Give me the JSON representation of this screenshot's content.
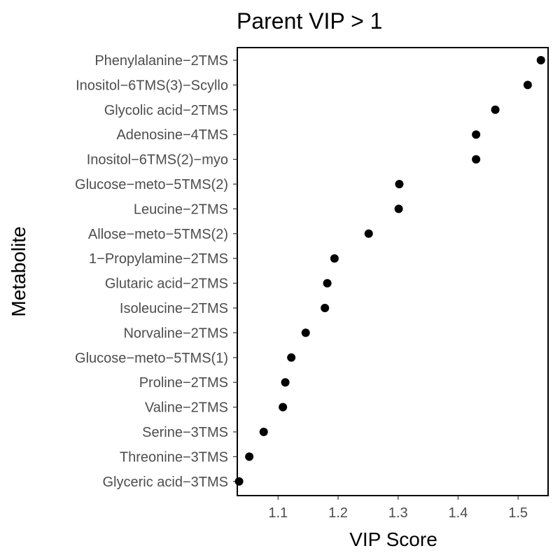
{
  "chart_data": {
    "type": "scatter",
    "title": "Parent VIP > 1",
    "xlabel": "VIP Score",
    "ylabel": "Metabolite",
    "xlim": [
      1.032,
      1.55
    ],
    "xticks": [
      1.1,
      1.2,
      1.3,
      1.4,
      1.5
    ],
    "xtick_labels": [
      "1.1",
      "1.2",
      "1.3",
      "1.4",
      "1.5"
    ],
    "grid": false,
    "legend": "none",
    "point_color": "#000000",
    "points": [
      {
        "label": "Phenylalanine−2TMS",
        "x": 1.538
      },
      {
        "label": "Inositol−6TMS(3)−Scyllo",
        "x": 1.516
      },
      {
        "label": "Glycolic acid−2TMS",
        "x": 1.462
      },
      {
        "label": "Adenosine−4TMS",
        "x": 1.43
      },
      {
        "label": "Inositol−6TMS(2)−myo",
        "x": 1.43
      },
      {
        "label": "Glucose−meto−5TMS(2)",
        "x": 1.302
      },
      {
        "label": "Leucine−2TMS",
        "x": 1.301
      },
      {
        "label": "Allose−meto−5TMS(2)",
        "x": 1.251
      },
      {
        "label": "1−Propylamine−2TMS",
        "x": 1.194
      },
      {
        "label": "Glutaric acid−2TMS",
        "x": 1.182
      },
      {
        "label": "Isoleucine−2TMS",
        "x": 1.178
      },
      {
        "label": "Norvaline−2TMS",
        "x": 1.146
      },
      {
        "label": "Glucose−meto−5TMS(1)",
        "x": 1.122
      },
      {
        "label": "Proline−2TMS",
        "x": 1.112
      },
      {
        "label": "Valine−2TMS",
        "x": 1.108
      },
      {
        "label": "Serine−3TMS",
        "x": 1.076
      },
      {
        "label": "Threonine−3TMS",
        "x": 1.052
      },
      {
        "label": "Glyceric acid−3TMS",
        "x": 1.035
      }
    ]
  }
}
